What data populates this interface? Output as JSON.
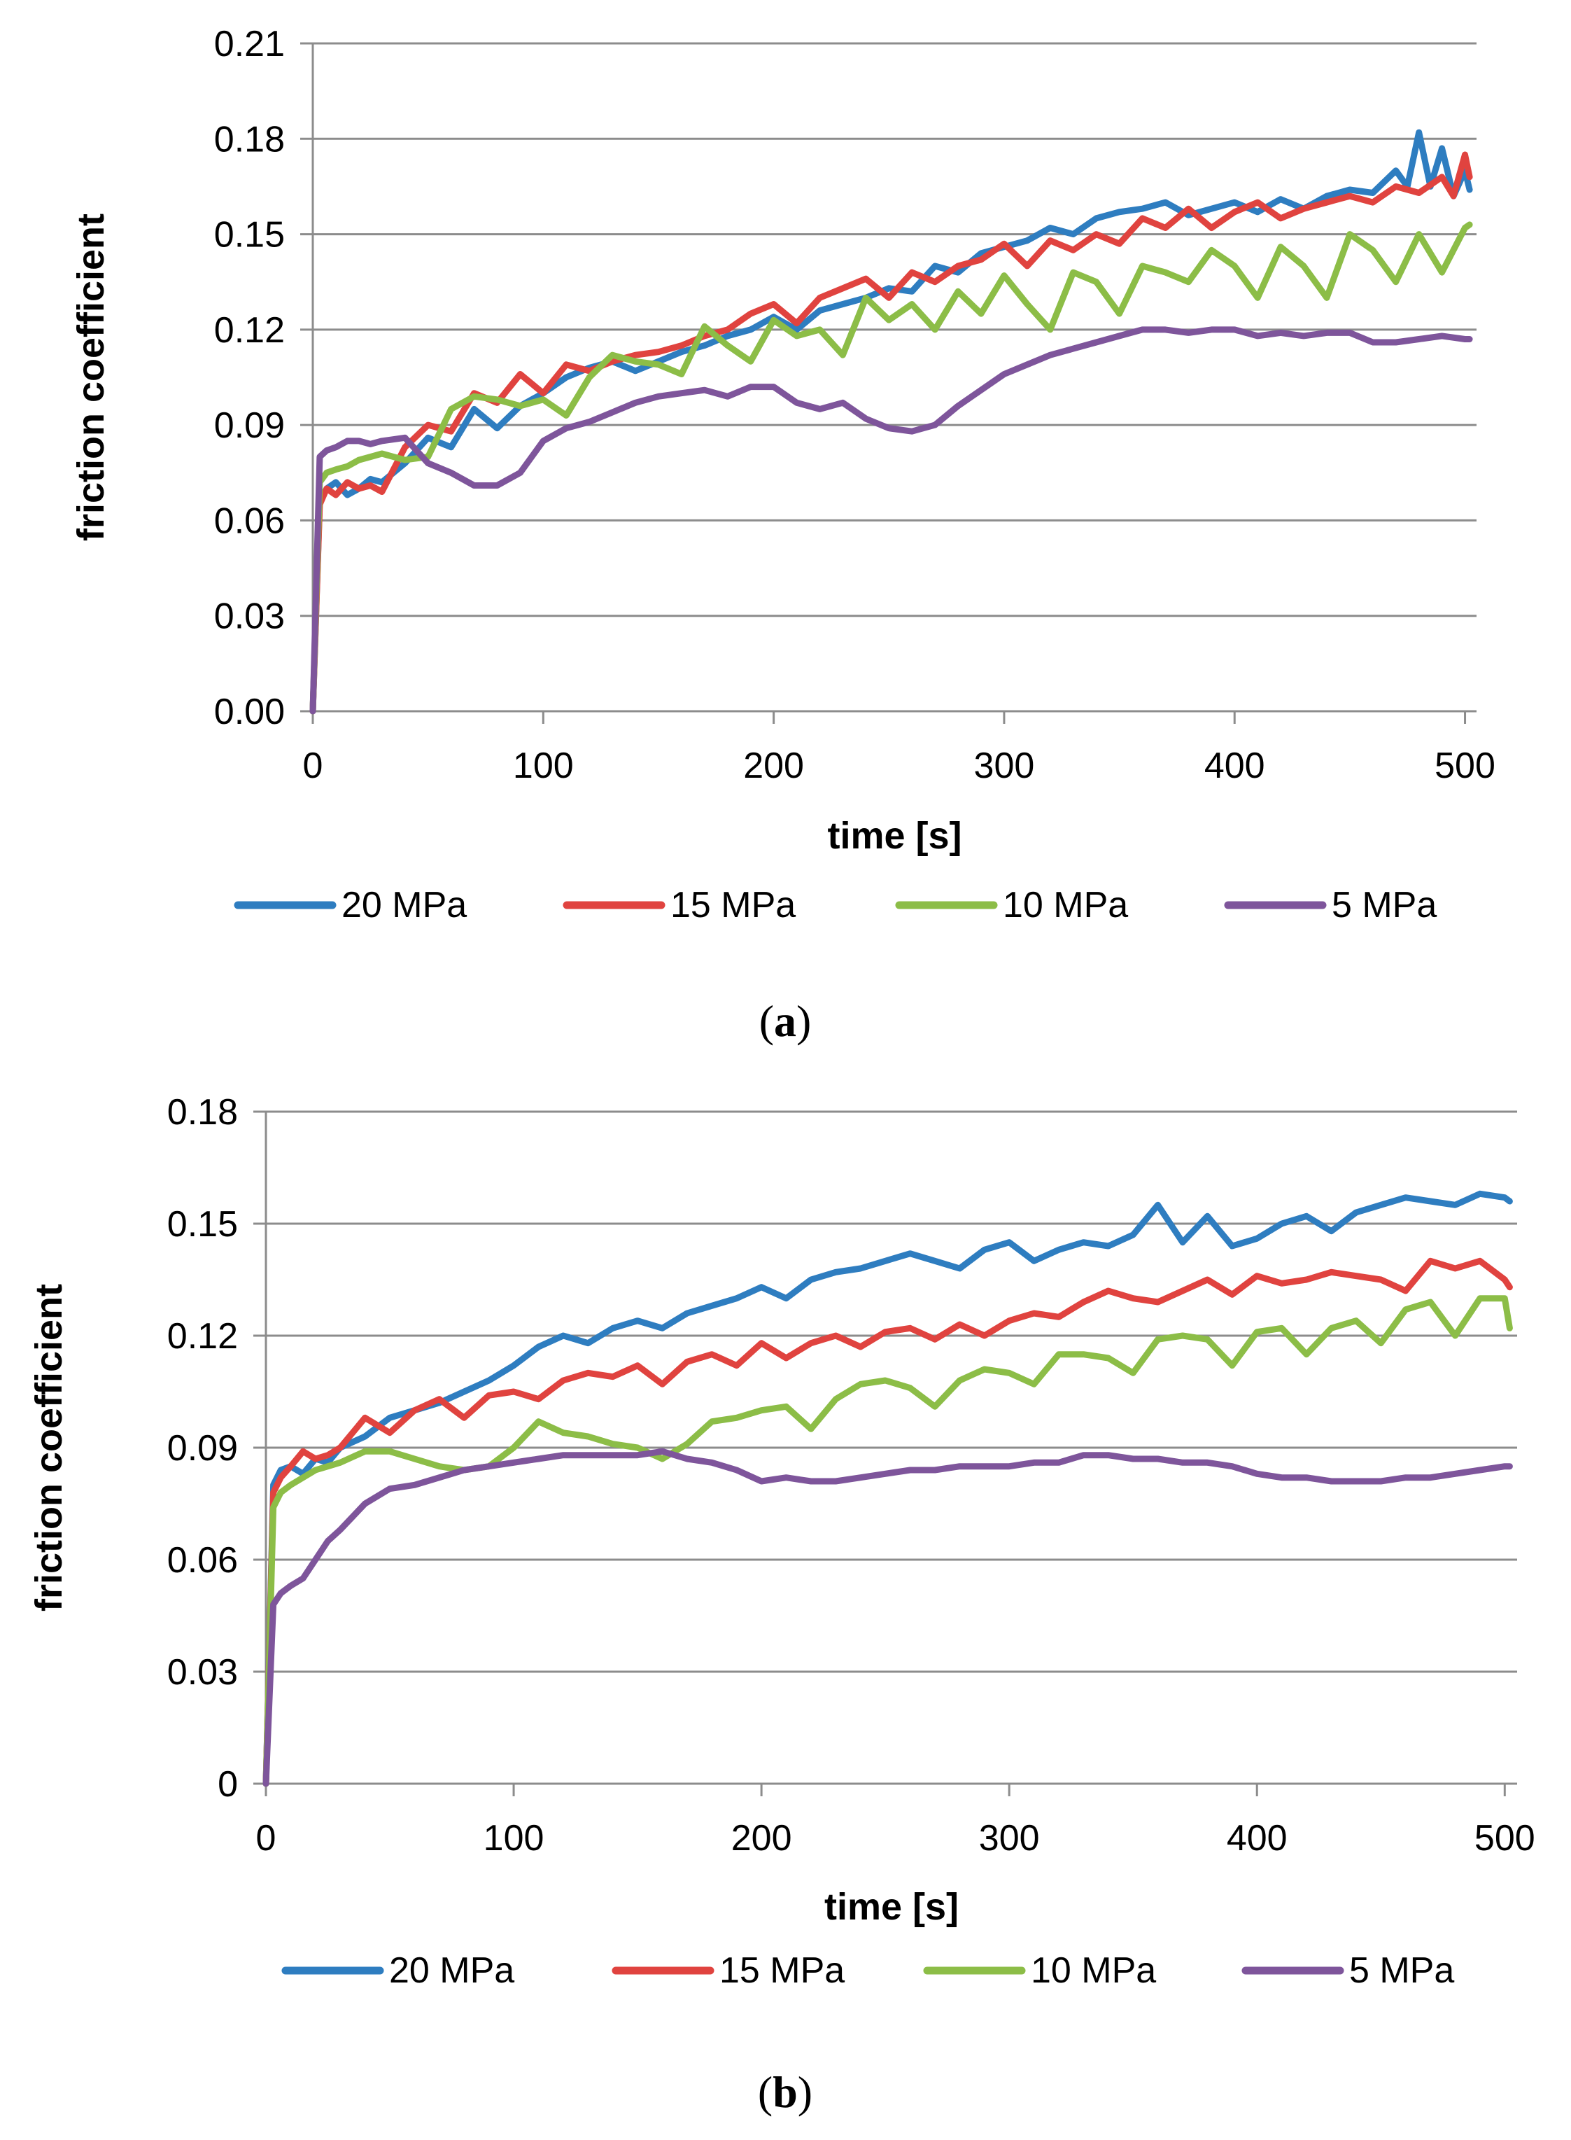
{
  "colors": {
    "20 MPa": "#2e7dc0",
    "15 MPa": "#e0433f",
    "10 MPa": "#8cbd47",
    "5 MPa": "#7e559b",
    "grid": "#8c8c8c"
  },
  "chart_data": [
    {
      "type": "line",
      "panel_label": {
        "open": "(",
        "letter": "a",
        "close": ")"
      },
      "xlabel": "time [s]",
      "ylabel": "friction coefficient",
      "xlim": [
        0,
        505
      ],
      "ylim": [
        0,
        0.21
      ],
      "x_ticks": [
        0,
        100,
        200,
        300,
        400,
        500
      ],
      "y_ticks": [
        "0.00",
        "0.03",
        "0.06",
        "0.09",
        "0.12",
        "0.15",
        "0.18",
        "0.21"
      ],
      "grid": true,
      "legend": "bottom",
      "series": [
        {
          "name": "20 MPa",
          "x": [
            0,
            3,
            6,
            10,
            15,
            20,
            25,
            30,
            40,
            50,
            60,
            70,
            80,
            90,
            100,
            110,
            120,
            130,
            140,
            150,
            160,
            170,
            180,
            190,
            200,
            210,
            220,
            230,
            240,
            250,
            260,
            270,
            280,
            290,
            300,
            310,
            320,
            330,
            340,
            350,
            360,
            370,
            380,
            390,
            400,
            410,
            420,
            430,
            440,
            450,
            460,
            470,
            475,
            480,
            485,
            490,
            495,
            500,
            502
          ],
          "values": [
            0.0,
            0.066,
            0.07,
            0.072,
            0.068,
            0.07,
            0.073,
            0.072,
            0.078,
            0.086,
            0.083,
            0.095,
            0.089,
            0.096,
            0.1,
            0.105,
            0.108,
            0.11,
            0.107,
            0.11,
            0.113,
            0.115,
            0.118,
            0.12,
            0.124,
            0.12,
            0.126,
            0.128,
            0.13,
            0.133,
            0.132,
            0.14,
            0.138,
            0.144,
            0.146,
            0.148,
            0.152,
            0.15,
            0.155,
            0.157,
            0.158,
            0.16,
            0.156,
            0.158,
            0.16,
            0.157,
            0.161,
            0.158,
            0.162,
            0.164,
            0.163,
            0.17,
            0.165,
            0.182,
            0.165,
            0.177,
            0.162,
            0.17,
            0.164
          ]
        },
        {
          "name": "15 MPa",
          "x": [
            0,
            3,
            6,
            10,
            15,
            20,
            25,
            30,
            40,
            50,
            60,
            70,
            80,
            90,
            100,
            110,
            120,
            130,
            140,
            150,
            160,
            170,
            180,
            190,
            200,
            210,
            220,
            230,
            240,
            250,
            260,
            270,
            280,
            290,
            300,
            310,
            320,
            330,
            340,
            350,
            360,
            370,
            380,
            390,
            400,
            410,
            420,
            430,
            440,
            450,
            460,
            470,
            480,
            490,
            495,
            500,
            502
          ],
          "values": [
            0.0,
            0.065,
            0.07,
            0.068,
            0.072,
            0.07,
            0.071,
            0.069,
            0.083,
            0.09,
            0.088,
            0.1,
            0.097,
            0.106,
            0.1,
            0.109,
            0.107,
            0.11,
            0.112,
            0.113,
            0.115,
            0.118,
            0.12,
            0.125,
            0.128,
            0.122,
            0.13,
            0.133,
            0.136,
            0.13,
            0.138,
            0.135,
            0.14,
            0.142,
            0.147,
            0.14,
            0.148,
            0.145,
            0.15,
            0.147,
            0.155,
            0.152,
            0.158,
            0.152,
            0.157,
            0.16,
            0.155,
            0.158,
            0.16,
            0.162,
            0.16,
            0.165,
            0.163,
            0.168,
            0.162,
            0.175,
            0.168
          ]
        },
        {
          "name": "10 MPa",
          "x": [
            0,
            3,
            6,
            10,
            15,
            20,
            25,
            30,
            40,
            50,
            60,
            70,
            80,
            90,
            100,
            110,
            120,
            130,
            140,
            150,
            160,
            170,
            180,
            190,
            200,
            210,
            220,
            230,
            240,
            250,
            260,
            270,
            280,
            290,
            300,
            310,
            320,
            330,
            340,
            350,
            360,
            370,
            380,
            390,
            400,
            410,
            420,
            430,
            440,
            450,
            460,
            470,
            480,
            490,
            500,
            502
          ],
          "values": [
            0.0,
            0.072,
            0.075,
            0.076,
            0.077,
            0.079,
            0.08,
            0.081,
            0.079,
            0.08,
            0.095,
            0.099,
            0.098,
            0.096,
            0.098,
            0.093,
            0.105,
            0.112,
            0.11,
            0.109,
            0.106,
            0.121,
            0.115,
            0.11,
            0.123,
            0.118,
            0.12,
            0.112,
            0.13,
            0.123,
            0.128,
            0.12,
            0.132,
            0.125,
            0.137,
            0.128,
            0.12,
            0.138,
            0.135,
            0.125,
            0.14,
            0.138,
            0.135,
            0.145,
            0.14,
            0.13,
            0.146,
            0.14,
            0.13,
            0.15,
            0.145,
            0.135,
            0.15,
            0.138,
            0.152,
            0.153
          ]
        },
        {
          "name": "5 MPa",
          "x": [
            0,
            3,
            6,
            10,
            15,
            20,
            25,
            30,
            40,
            50,
            60,
            70,
            80,
            90,
            100,
            110,
            120,
            130,
            140,
            150,
            160,
            170,
            180,
            190,
            200,
            210,
            220,
            230,
            240,
            250,
            260,
            270,
            280,
            290,
            300,
            310,
            320,
            330,
            340,
            350,
            360,
            370,
            380,
            390,
            400,
            410,
            420,
            430,
            440,
            450,
            460,
            470,
            480,
            490,
            500,
            502
          ],
          "values": [
            0.0,
            0.08,
            0.082,
            0.083,
            0.085,
            0.085,
            0.084,
            0.085,
            0.086,
            0.078,
            0.075,
            0.071,
            0.071,
            0.075,
            0.085,
            0.089,
            0.091,
            0.094,
            0.097,
            0.099,
            0.1,
            0.101,
            0.099,
            0.102,
            0.102,
            0.097,
            0.095,
            0.097,
            0.092,
            0.089,
            0.088,
            0.09,
            0.096,
            0.101,
            0.106,
            0.109,
            0.112,
            0.114,
            0.116,
            0.118,
            0.12,
            0.12,
            0.119,
            0.12,
            0.12,
            0.118,
            0.119,
            0.118,
            0.119,
            0.119,
            0.116,
            0.116,
            0.117,
            0.118,
            0.117,
            0.117
          ]
        }
      ]
    },
    {
      "type": "line",
      "panel_label": {
        "open": "(",
        "letter": "b",
        "close": ")"
      },
      "xlabel": "time [s]",
      "ylabel": "friction coefficient",
      "xlim": [
        0,
        505
      ],
      "ylim": [
        0,
        0.18
      ],
      "x_ticks": [
        0,
        100,
        200,
        300,
        400,
        500
      ],
      "y_ticks": [
        "0",
        "0.03",
        "0.06",
        "0.09",
        "0.12",
        "0.15",
        "0.18"
      ],
      "grid": true,
      "legend": "bottom",
      "series": [
        {
          "name": "20 MPa",
          "x": [
            0,
            3,
            6,
            10,
            15,
            20,
            25,
            30,
            40,
            50,
            60,
            70,
            80,
            90,
            100,
            110,
            120,
            130,
            140,
            150,
            160,
            170,
            180,
            190,
            200,
            210,
            220,
            230,
            240,
            250,
            260,
            270,
            280,
            290,
            300,
            310,
            320,
            330,
            340,
            350,
            360,
            370,
            380,
            390,
            400,
            410,
            420,
            430,
            440,
            450,
            460,
            470,
            480,
            490,
            500,
            502
          ],
          "values": [
            0.0,
            0.08,
            0.084,
            0.085,
            0.083,
            0.087,
            0.086,
            0.09,
            0.093,
            0.098,
            0.1,
            0.102,
            0.105,
            0.108,
            0.112,
            0.117,
            0.12,
            0.118,
            0.122,
            0.124,
            0.122,
            0.126,
            0.128,
            0.13,
            0.133,
            0.13,
            0.135,
            0.137,
            0.138,
            0.14,
            0.142,
            0.14,
            0.138,
            0.143,
            0.145,
            0.14,
            0.143,
            0.145,
            0.144,
            0.147,
            0.155,
            0.145,
            0.152,
            0.144,
            0.146,
            0.15,
            0.152,
            0.148,
            0.153,
            0.155,
            0.157,
            0.156,
            0.155,
            0.158,
            0.157,
            0.156
          ]
        },
        {
          "name": "15 MPa",
          "x": [
            0,
            3,
            6,
            10,
            15,
            20,
            25,
            30,
            40,
            50,
            60,
            70,
            80,
            90,
            100,
            110,
            120,
            130,
            140,
            150,
            160,
            170,
            180,
            190,
            200,
            210,
            220,
            230,
            240,
            250,
            260,
            270,
            280,
            290,
            300,
            310,
            320,
            330,
            340,
            350,
            360,
            370,
            380,
            390,
            400,
            410,
            420,
            430,
            440,
            450,
            460,
            470,
            480,
            490,
            500,
            502
          ],
          "values": [
            0.0,
            0.078,
            0.082,
            0.085,
            0.089,
            0.087,
            0.088,
            0.09,
            0.098,
            0.094,
            0.1,
            0.103,
            0.098,
            0.104,
            0.105,
            0.103,
            0.108,
            0.11,
            0.109,
            0.112,
            0.107,
            0.113,
            0.115,
            0.112,
            0.118,
            0.114,
            0.118,
            0.12,
            0.117,
            0.121,
            0.122,
            0.119,
            0.123,
            0.12,
            0.124,
            0.126,
            0.125,
            0.129,
            0.132,
            0.13,
            0.129,
            0.132,
            0.135,
            0.131,
            0.136,
            0.134,
            0.135,
            0.137,
            0.136,
            0.135,
            0.132,
            0.14,
            0.138,
            0.14,
            0.135,
            0.133
          ]
        },
        {
          "name": "10 MPa",
          "x": [
            0,
            3,
            6,
            10,
            15,
            20,
            25,
            30,
            40,
            50,
            60,
            70,
            80,
            90,
            100,
            110,
            120,
            130,
            140,
            150,
            160,
            170,
            180,
            190,
            200,
            210,
            220,
            230,
            240,
            250,
            260,
            270,
            280,
            290,
            300,
            310,
            320,
            330,
            340,
            350,
            360,
            370,
            380,
            390,
            400,
            410,
            420,
            430,
            440,
            450,
            460,
            470,
            480,
            490,
            500,
            502
          ],
          "values": [
            0.0,
            0.074,
            0.078,
            0.08,
            0.082,
            0.084,
            0.085,
            0.086,
            0.089,
            0.089,
            0.087,
            0.085,
            0.084,
            0.085,
            0.09,
            0.097,
            0.094,
            0.093,
            0.091,
            0.09,
            0.087,
            0.091,
            0.097,
            0.098,
            0.1,
            0.101,
            0.095,
            0.103,
            0.107,
            0.108,
            0.106,
            0.101,
            0.108,
            0.111,
            0.11,
            0.107,
            0.115,
            0.115,
            0.114,
            0.11,
            0.119,
            0.12,
            0.119,
            0.112,
            0.121,
            0.122,
            0.115,
            0.122,
            0.124,
            0.118,
            0.127,
            0.129,
            0.12,
            0.13,
            0.13,
            0.122
          ]
        },
        {
          "name": "5 MPa",
          "x": [
            0,
            3,
            6,
            10,
            15,
            20,
            25,
            30,
            40,
            50,
            60,
            70,
            80,
            90,
            100,
            110,
            120,
            130,
            140,
            150,
            160,
            170,
            180,
            190,
            200,
            210,
            220,
            230,
            240,
            250,
            260,
            270,
            280,
            290,
            300,
            310,
            320,
            330,
            340,
            350,
            360,
            370,
            380,
            390,
            400,
            410,
            420,
            430,
            440,
            450,
            460,
            470,
            480,
            490,
            500,
            502
          ],
          "values": [
            0.0,
            0.048,
            0.051,
            0.053,
            0.055,
            0.06,
            0.065,
            0.068,
            0.075,
            0.079,
            0.08,
            0.082,
            0.084,
            0.085,
            0.086,
            0.087,
            0.088,
            0.088,
            0.088,
            0.088,
            0.089,
            0.087,
            0.086,
            0.084,
            0.081,
            0.082,
            0.081,
            0.081,
            0.082,
            0.083,
            0.084,
            0.084,
            0.085,
            0.085,
            0.085,
            0.086,
            0.086,
            0.088,
            0.088,
            0.087,
            0.087,
            0.086,
            0.086,
            0.085,
            0.083,
            0.082,
            0.082,
            0.081,
            0.081,
            0.081,
            0.082,
            0.082,
            0.083,
            0.084,
            0.085,
            0.085
          ]
        }
      ]
    }
  ]
}
